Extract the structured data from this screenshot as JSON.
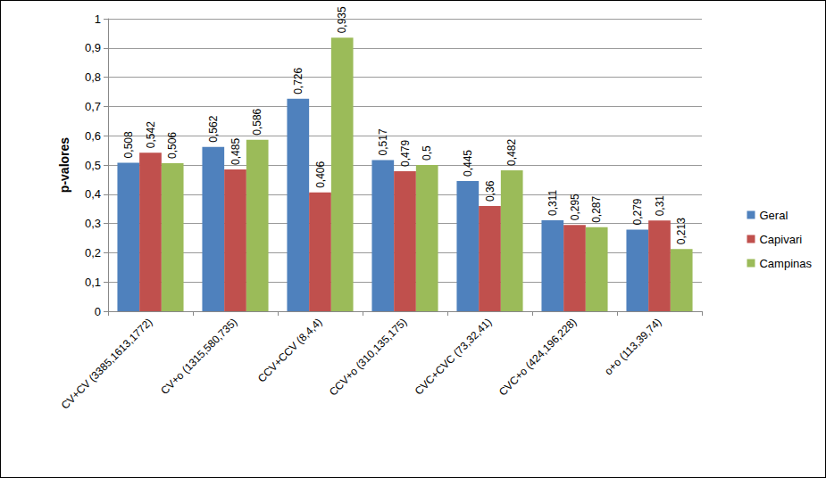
{
  "chart_data": {
    "type": "bar",
    "y_label": "p-valores",
    "categories": [
      "CV+CV (3385,1613,1772)",
      "CV+o (1315,580,735)",
      "CCV+CCV (8,4,4)",
      "CCV+o (310,135,175)",
      "CVC+CVC (73,32,41)",
      "CVC+o (424,196,228)",
      "o+o (113,39,74)"
    ],
    "series": [
      {
        "name": "Geral",
        "color": "#4f81bd",
        "values": [
          0.508,
          0.562,
          0.726,
          0.517,
          0.445,
          0.311,
          0.279
        ],
        "value_labels": [
          "0,508",
          "0,562",
          "0,726",
          "0,517",
          "0,445",
          "0,311",
          "0,279"
        ]
      },
      {
        "name": "Capivari",
        "color": "#c0504d",
        "values": [
          0.542,
          0.485,
          0.406,
          0.479,
          0.36,
          0.295,
          0.31
        ],
        "value_labels": [
          "0,542",
          "0,485",
          "0,406",
          "0,479",
          "0,36",
          "0,295",
          "0,31"
        ]
      },
      {
        "name": "Campinas",
        "color": "#9bbb59",
        "values": [
          0.506,
          0.586,
          0.935,
          0.5,
          0.482,
          0.287,
          0.213
        ],
        "value_labels": [
          "0,506",
          "0,586",
          "0,935",
          "0,5",
          "0,482",
          "0,287",
          "0,213"
        ]
      }
    ],
    "ylim": [
      0,
      1
    ],
    "yticks": [
      0,
      {
        "value": 0.1,
        "label": "0,1"
      },
      {
        "value": 0.2,
        "label": "0,2"
      },
      {
        "value": 0.3,
        "label": "0,3"
      },
      {
        "value": 0.4,
        "label": "0,4"
      },
      {
        "value": 0.5,
        "label": "0,5"
      },
      {
        "value": 0.6,
        "label": "0,6"
      },
      {
        "value": 0.7,
        "label": "0,7"
      },
      {
        "value": 0.8,
        "label": "0,8"
      },
      {
        "value": 0.9,
        "label": "0,9"
      },
      1
    ],
    "grid": true,
    "legend": "right",
    "data_labels": true
  }
}
